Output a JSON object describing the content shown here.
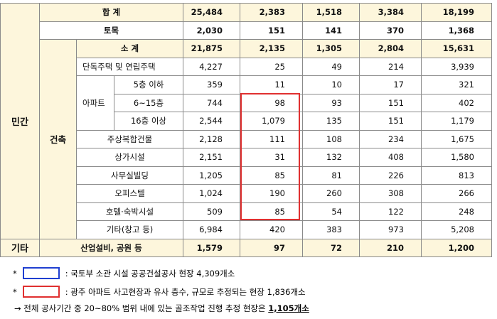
{
  "groups": {
    "private": "민간",
    "building": "건축",
    "apartment": "아파트",
    "other": "기타"
  },
  "table": {
    "rows": [
      {
        "label": "합 계",
        "values": [
          "25,484",
          "2,383",
          "1,518",
          "3,384",
          "18,199"
        ]
      },
      {
        "label": "토목",
        "values": [
          "2,030",
          "151",
          "141",
          "370",
          "1,368"
        ]
      },
      {
        "label": "소 계",
        "values": [
          "21,875",
          "2,135",
          "1,305",
          "2,804",
          "15,631"
        ]
      },
      {
        "label": "단독주택 및 연립주택",
        "values": [
          "4,227",
          "25",
          "49",
          "214",
          "3,939"
        ]
      },
      {
        "label": "5층 이하",
        "values": [
          "359",
          "11",
          "10",
          "17",
          "321"
        ]
      },
      {
        "label": "6~15층",
        "values": [
          "744",
          "98",
          "93",
          "151",
          "402"
        ]
      },
      {
        "label": "16층 이상",
        "values": [
          "2,544",
          "1,079",
          "135",
          "151",
          "1,179"
        ]
      },
      {
        "label": "주상복합건물",
        "values": [
          "2,128",
          "111",
          "108",
          "234",
          "1,675"
        ]
      },
      {
        "label": "상가시설",
        "values": [
          "2,151",
          "31",
          "132",
          "408",
          "1,580"
        ]
      },
      {
        "label": "사무실빌딩",
        "values": [
          "1,205",
          "85",
          "81",
          "226",
          "813"
        ]
      },
      {
        "label": "오피스텔",
        "values": [
          "1,024",
          "190",
          "260",
          "308",
          "266"
        ]
      },
      {
        "label": "호텔·숙박시설",
        "values": [
          "509",
          "85",
          "54",
          "122",
          "248"
        ]
      },
      {
        "label": "기타(창고 등)",
        "values": [
          "6,984",
          "420",
          "383",
          "973",
          "5,208"
        ]
      },
      {
        "label": "산업설비, 공원 등",
        "values": [
          "1,579",
          "97",
          "72",
          "210",
          "1,200"
        ]
      }
    ]
  },
  "notes": [
    {
      "marker": "*",
      "text": ": 국토부 소관 시설 공공건설공사 현장 4,309개소"
    },
    {
      "marker": "*",
      "text": ": 광주 아파트 사고현장과 유사 층수, 규모로 추정되는 현장 1,836개소"
    }
  ],
  "conclusion": {
    "text": "→ 전체 공사기간 중 20~80% 범위 내에 있는 골조작업 진행 추정 현장은",
    "highlight": "1,105개소"
  }
}
